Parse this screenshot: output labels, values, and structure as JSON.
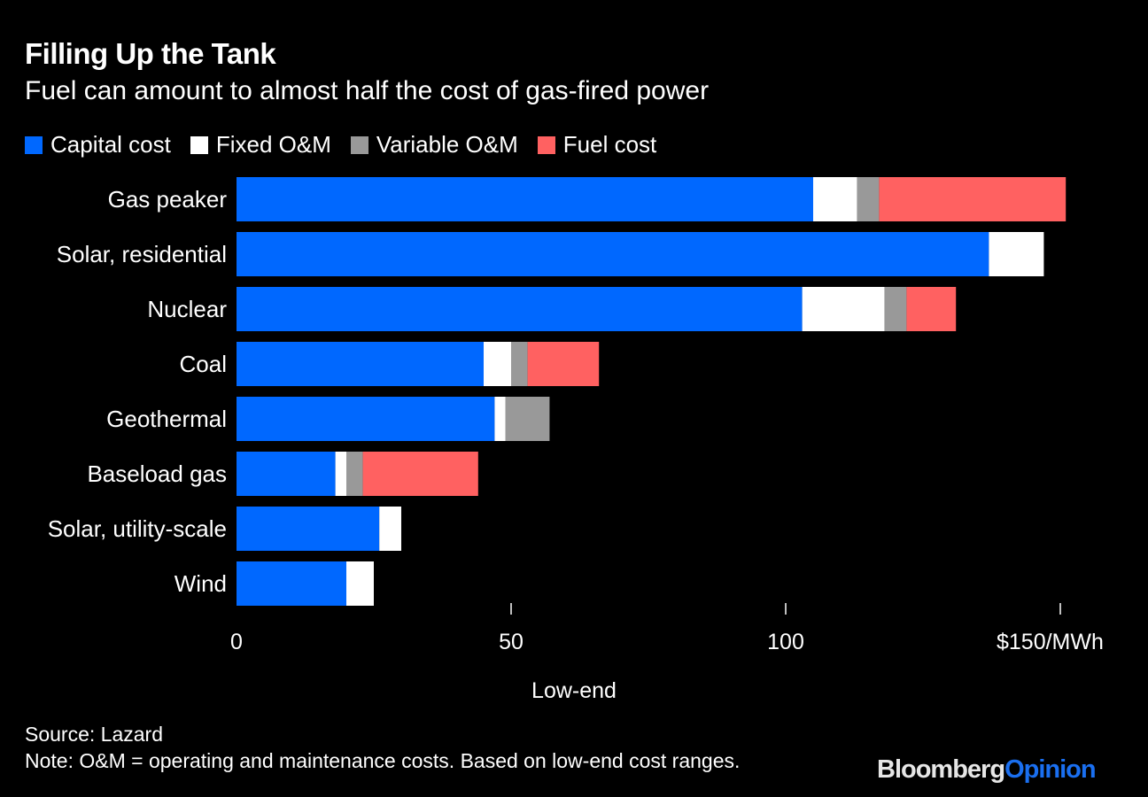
{
  "header": {
    "title": "Filling Up the Tank",
    "subtitle": "Fuel can amount to almost half the cost of gas-fired power"
  },
  "legend": [
    {
      "label": "Capital cost",
      "color": "#0068ff"
    },
    {
      "label": "Fixed O&M",
      "color": "#ffffff"
    },
    {
      "label": "Variable O&M",
      "color": "#999999"
    },
    {
      "label": "Fuel cost",
      "color": "#ff6161"
    }
  ],
  "footer": {
    "source": "Source: Lazard",
    "note": "Note: O&M = operating and maintenance costs. Based on low-end cost ranges.",
    "brand_part1": "Bloomberg",
    "brand_part2": "Opinion"
  },
  "chart_data": {
    "type": "bar",
    "orientation": "horizontal",
    "stacked": true,
    "title": "Filling Up the Tank",
    "subtitle": "Fuel can amount to almost half the cost of gas-fired power",
    "xlabel": "Low-end",
    "ylabel": "",
    "xlim": [
      0,
      150
    ],
    "xticks": [
      0,
      50,
      100,
      150
    ],
    "xtick_labels": [
      "0",
      "50",
      "100",
      "$150/MWh"
    ],
    "grid": false,
    "legend_position": "top-left",
    "categories": [
      "Gas peaker",
      "Solar, residential",
      "Nuclear",
      "Coal",
      "Geothermal",
      "Baseload gas",
      "Solar, utility-scale",
      "Wind"
    ],
    "series": [
      {
        "name": "Capital cost",
        "color": "#0068ff",
        "values": [
          105,
          137,
          103,
          45,
          47,
          18,
          26,
          20
        ]
      },
      {
        "name": "Fixed O&M",
        "color": "#ffffff",
        "values": [
          8,
          10,
          15,
          5,
          2,
          2,
          4,
          5
        ]
      },
      {
        "name": "Variable O&M",
        "color": "#999999",
        "values": [
          4,
          0,
          4,
          3,
          8,
          3,
          0,
          0
        ]
      },
      {
        "name": "Fuel cost",
        "color": "#ff6161",
        "values": [
          34,
          0,
          9,
          13,
          0,
          21,
          0,
          0
        ]
      }
    ]
  }
}
